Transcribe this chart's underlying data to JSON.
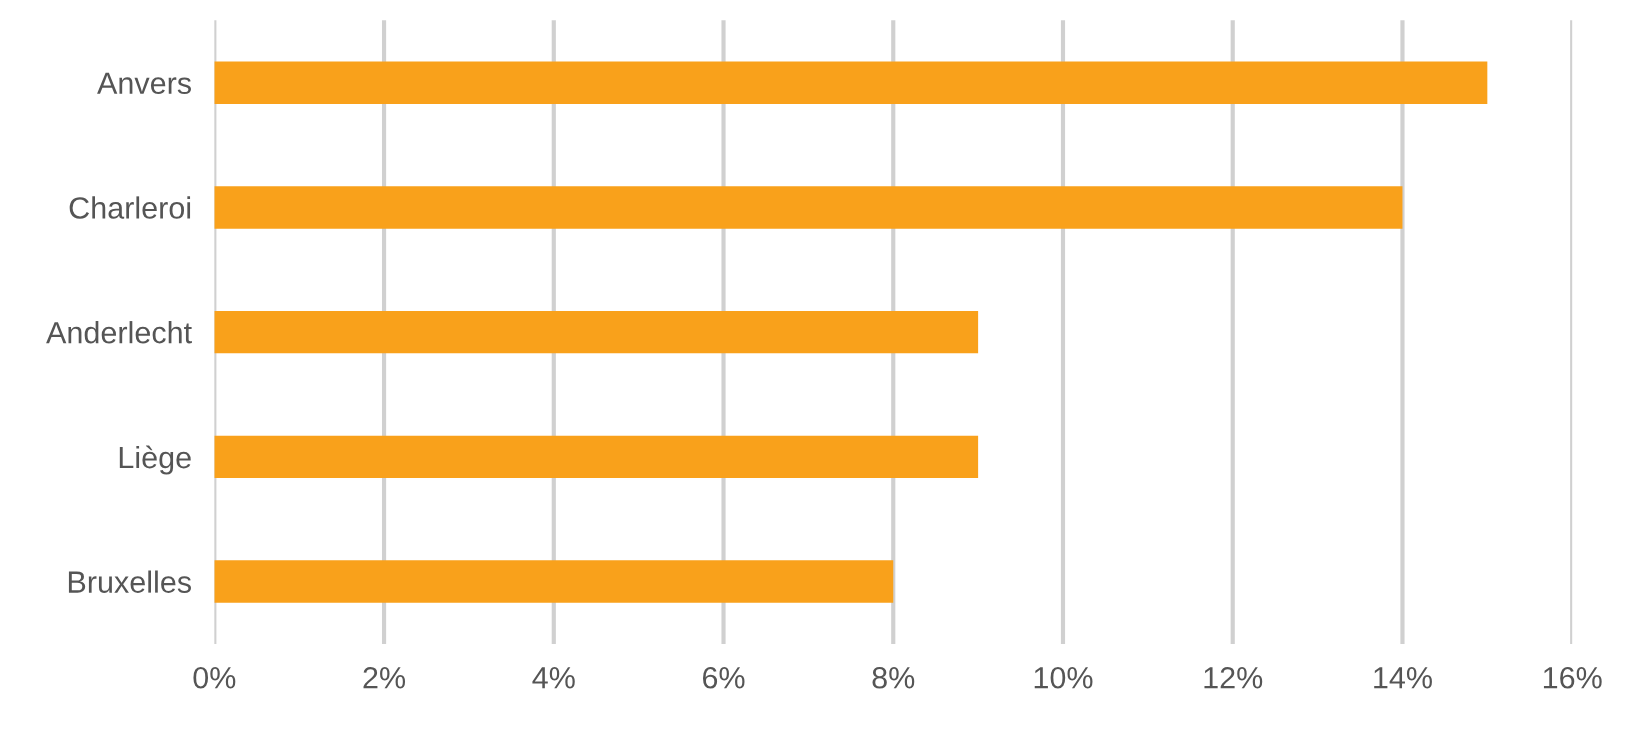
{
  "chart_data": {
    "type": "bar",
    "orientation": "horizontal",
    "categories": [
      "Anvers",
      "Charleroi",
      "Anderlecht",
      "Liège",
      "Bruxelles"
    ],
    "values": [
      15,
      14,
      9,
      9,
      8
    ],
    "color": "#f9a11b",
    "xlim": [
      0,
      16
    ],
    "xticks": [
      {
        "value": 0,
        "label": "0%"
      },
      {
        "value": 2,
        "label": "2%"
      },
      {
        "value": 4,
        "label": "4%"
      },
      {
        "value": 6,
        "label": "6%"
      },
      {
        "value": 8,
        "label": "8%"
      },
      {
        "value": 10,
        "label": "10%"
      },
      {
        "value": 12,
        "label": "12%"
      },
      {
        "value": 14,
        "label": "14%"
      },
      {
        "value": 16,
        "label": "16%"
      }
    ],
    "grid": "x"
  }
}
